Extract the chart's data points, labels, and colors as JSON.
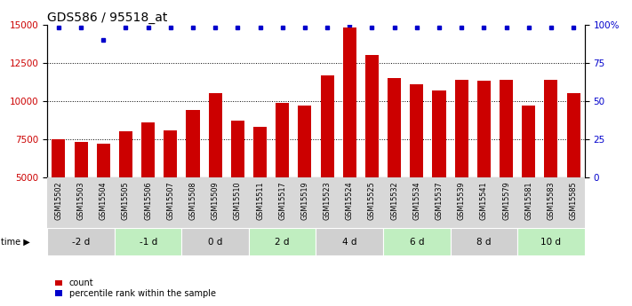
{
  "title": "GDS586 / 95518_at",
  "samples": [
    "GSM15502",
    "GSM15503",
    "GSM15504",
    "GSM15505",
    "GSM15506",
    "GSM15507",
    "GSM15508",
    "GSM15509",
    "GSM15510",
    "GSM15511",
    "GSM15517",
    "GSM15519",
    "GSM15523",
    "GSM15524",
    "GSM15525",
    "GSM15532",
    "GSM15534",
    "GSM15537",
    "GSM15539",
    "GSM15541",
    "GSM15579",
    "GSM15581",
    "GSM15583",
    "GSM15585"
  ],
  "counts": [
    7500,
    7300,
    7200,
    8000,
    8600,
    8100,
    9400,
    10500,
    8700,
    8300,
    9900,
    9700,
    11700,
    14800,
    13000,
    11500,
    11100,
    10700,
    11400,
    11300,
    11400,
    9700,
    11400,
    10500
  ],
  "percentiles": [
    98,
    98,
    90,
    98,
    98,
    98,
    98,
    98,
    98,
    98,
    98,
    98,
    98,
    100,
    98,
    98,
    98,
    98,
    98,
    98,
    98,
    98,
    98,
    98
  ],
  "time_groups_order": [
    "-2 d",
    "-1 d",
    "0 d",
    "2 d",
    "4 d",
    "6 d",
    "8 d",
    "10 d"
  ],
  "time_groups": {
    "-2 d": [
      "GSM15502",
      "GSM15503",
      "GSM15504"
    ],
    "-1 d": [
      "GSM15505",
      "GSM15506",
      "GSM15507"
    ],
    "0 d": [
      "GSM15508",
      "GSM15509",
      "GSM15510"
    ],
    "2 d": [
      "GSM15511",
      "GSM15517",
      "GSM15519"
    ],
    "4 d": [
      "GSM15523",
      "GSM15524",
      "GSM15525"
    ],
    "6 d": [
      "GSM15532",
      "GSM15534",
      "GSM15537"
    ],
    "8 d": [
      "GSM15539",
      "GSM15541",
      "GSM15579"
    ],
    "10 d": [
      "GSM15581",
      "GSM15583",
      "GSM15585"
    ]
  },
  "time_group_colors": [
    "#d0d0d0",
    "#c0eec0"
  ],
  "bar_color": "#cc0000",
  "dot_color": "#0000cc",
  "ylim_left": [
    5000,
    15000
  ],
  "ylim_right": [
    0,
    100
  ],
  "yticks_left": [
    5000,
    7500,
    10000,
    12500,
    15000
  ],
  "yticks_right": [
    0,
    25,
    50,
    75,
    100
  ],
  "grid_values": [
    7500,
    10000,
    12500
  ],
  "background_color": "#ffffff",
  "legend_count_label": "count",
  "legend_pct_label": "percentile rank within the sample",
  "title_fontsize": 10
}
